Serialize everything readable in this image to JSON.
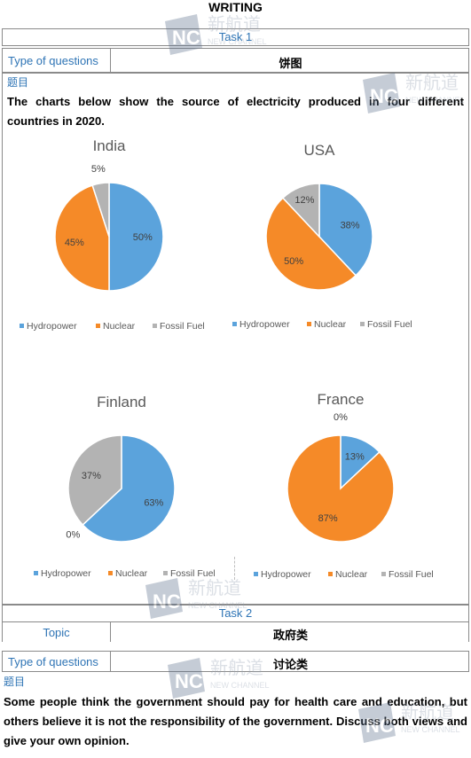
{
  "header": {
    "title": "WRITING"
  },
  "task1": {
    "label": "Task 1",
    "type_label": "Type of questions",
    "type_value": "饼图",
    "topic_mark": "题目",
    "question": "The charts below show the source of electricity produced in four different countries in 2020."
  },
  "chart_data": [
    {
      "type": "pie",
      "title": "India",
      "categories": [
        "Hydropower",
        "Nuclear",
        "Fossil Fuel"
      ],
      "values": [
        50,
        45,
        5
      ],
      "labels": [
        "50%",
        "45%",
        "5%"
      ]
    },
    {
      "type": "pie",
      "title": "USA",
      "categories": [
        "Hydropower",
        "Nuclear",
        "Fossil Fuel"
      ],
      "values": [
        38,
        50,
        12
      ],
      "labels": [
        "38%",
        "50%",
        "12%"
      ]
    },
    {
      "type": "pie",
      "title": "Finland",
      "categories": [
        "Hydropower",
        "Nuclear",
        "Fossil Fuel"
      ],
      "values": [
        63,
        0,
        37
      ],
      "labels": [
        "63%",
        "0%",
        "37%"
      ]
    },
    {
      "type": "pie",
      "title": "France",
      "categories": [
        "Hydropower",
        "Nuclear",
        "Fossil Fuel"
      ],
      "values": [
        13,
        87,
        0
      ],
      "labels": [
        "13%",
        "87%",
        "0%"
      ]
    }
  ],
  "legend": {
    "items": [
      {
        "name": "Hydropower",
        "color": "#5ba3dc"
      },
      {
        "name": "Nuclear",
        "color": "#f58a28"
      },
      {
        "name": "Fossil Fuel",
        "color": "#b3b3b3"
      }
    ]
  },
  "task2": {
    "label": "Task 2",
    "topic_label": "Topic",
    "topic_value": "政府类",
    "type_label": "Type of questions",
    "type_value": "讨论类",
    "topic_mark": "题目",
    "question": "Some people think the government should pay for health care and education, but others believe it is not the responsibility of the government. Discuss both views and give your own opinion."
  },
  "watermark": {
    "logo": "NC",
    "brand_cn": "新航道",
    "brand_en": "NEW CHANNEL"
  }
}
